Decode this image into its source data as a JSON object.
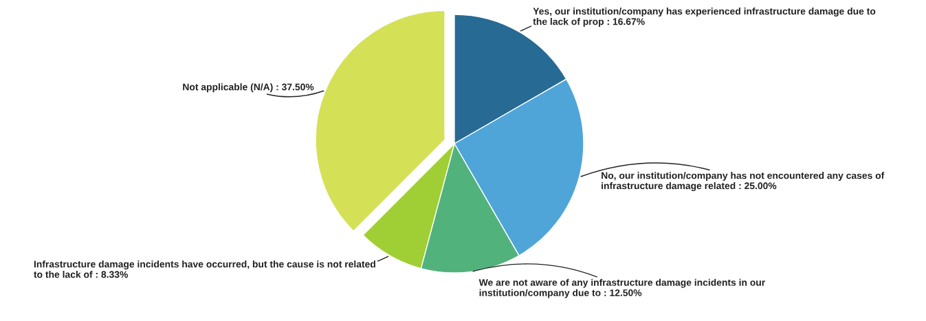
{
  "chart_data": {
    "type": "pie",
    "categories": [
      "Yes, our institution/company has experienced infrastructure damage due to\nthe lack of prop",
      "No, our institution/company has not encountered any cases of\ninfrastructure damage related",
      "We are not aware of any infrastructure damage incidents in our\ninstitution/company due to",
      "Infrastructure damage incidents have occurred, but the cause is not related\nto the lack of",
      "Not applicable (N/A)"
    ],
    "values": [
      16.67,
      25.0,
      12.5,
      8.33,
      37.5
    ],
    "value_labels": [
      "16.67%",
      "25.00%",
      "12.50%",
      "8.33%",
      "37.50%"
    ],
    "colors": [
      "#276a94",
      "#4fa5d8",
      "#52b27c",
      "#9fcf34",
      "#d4e157"
    ],
    "legend": false
  }
}
